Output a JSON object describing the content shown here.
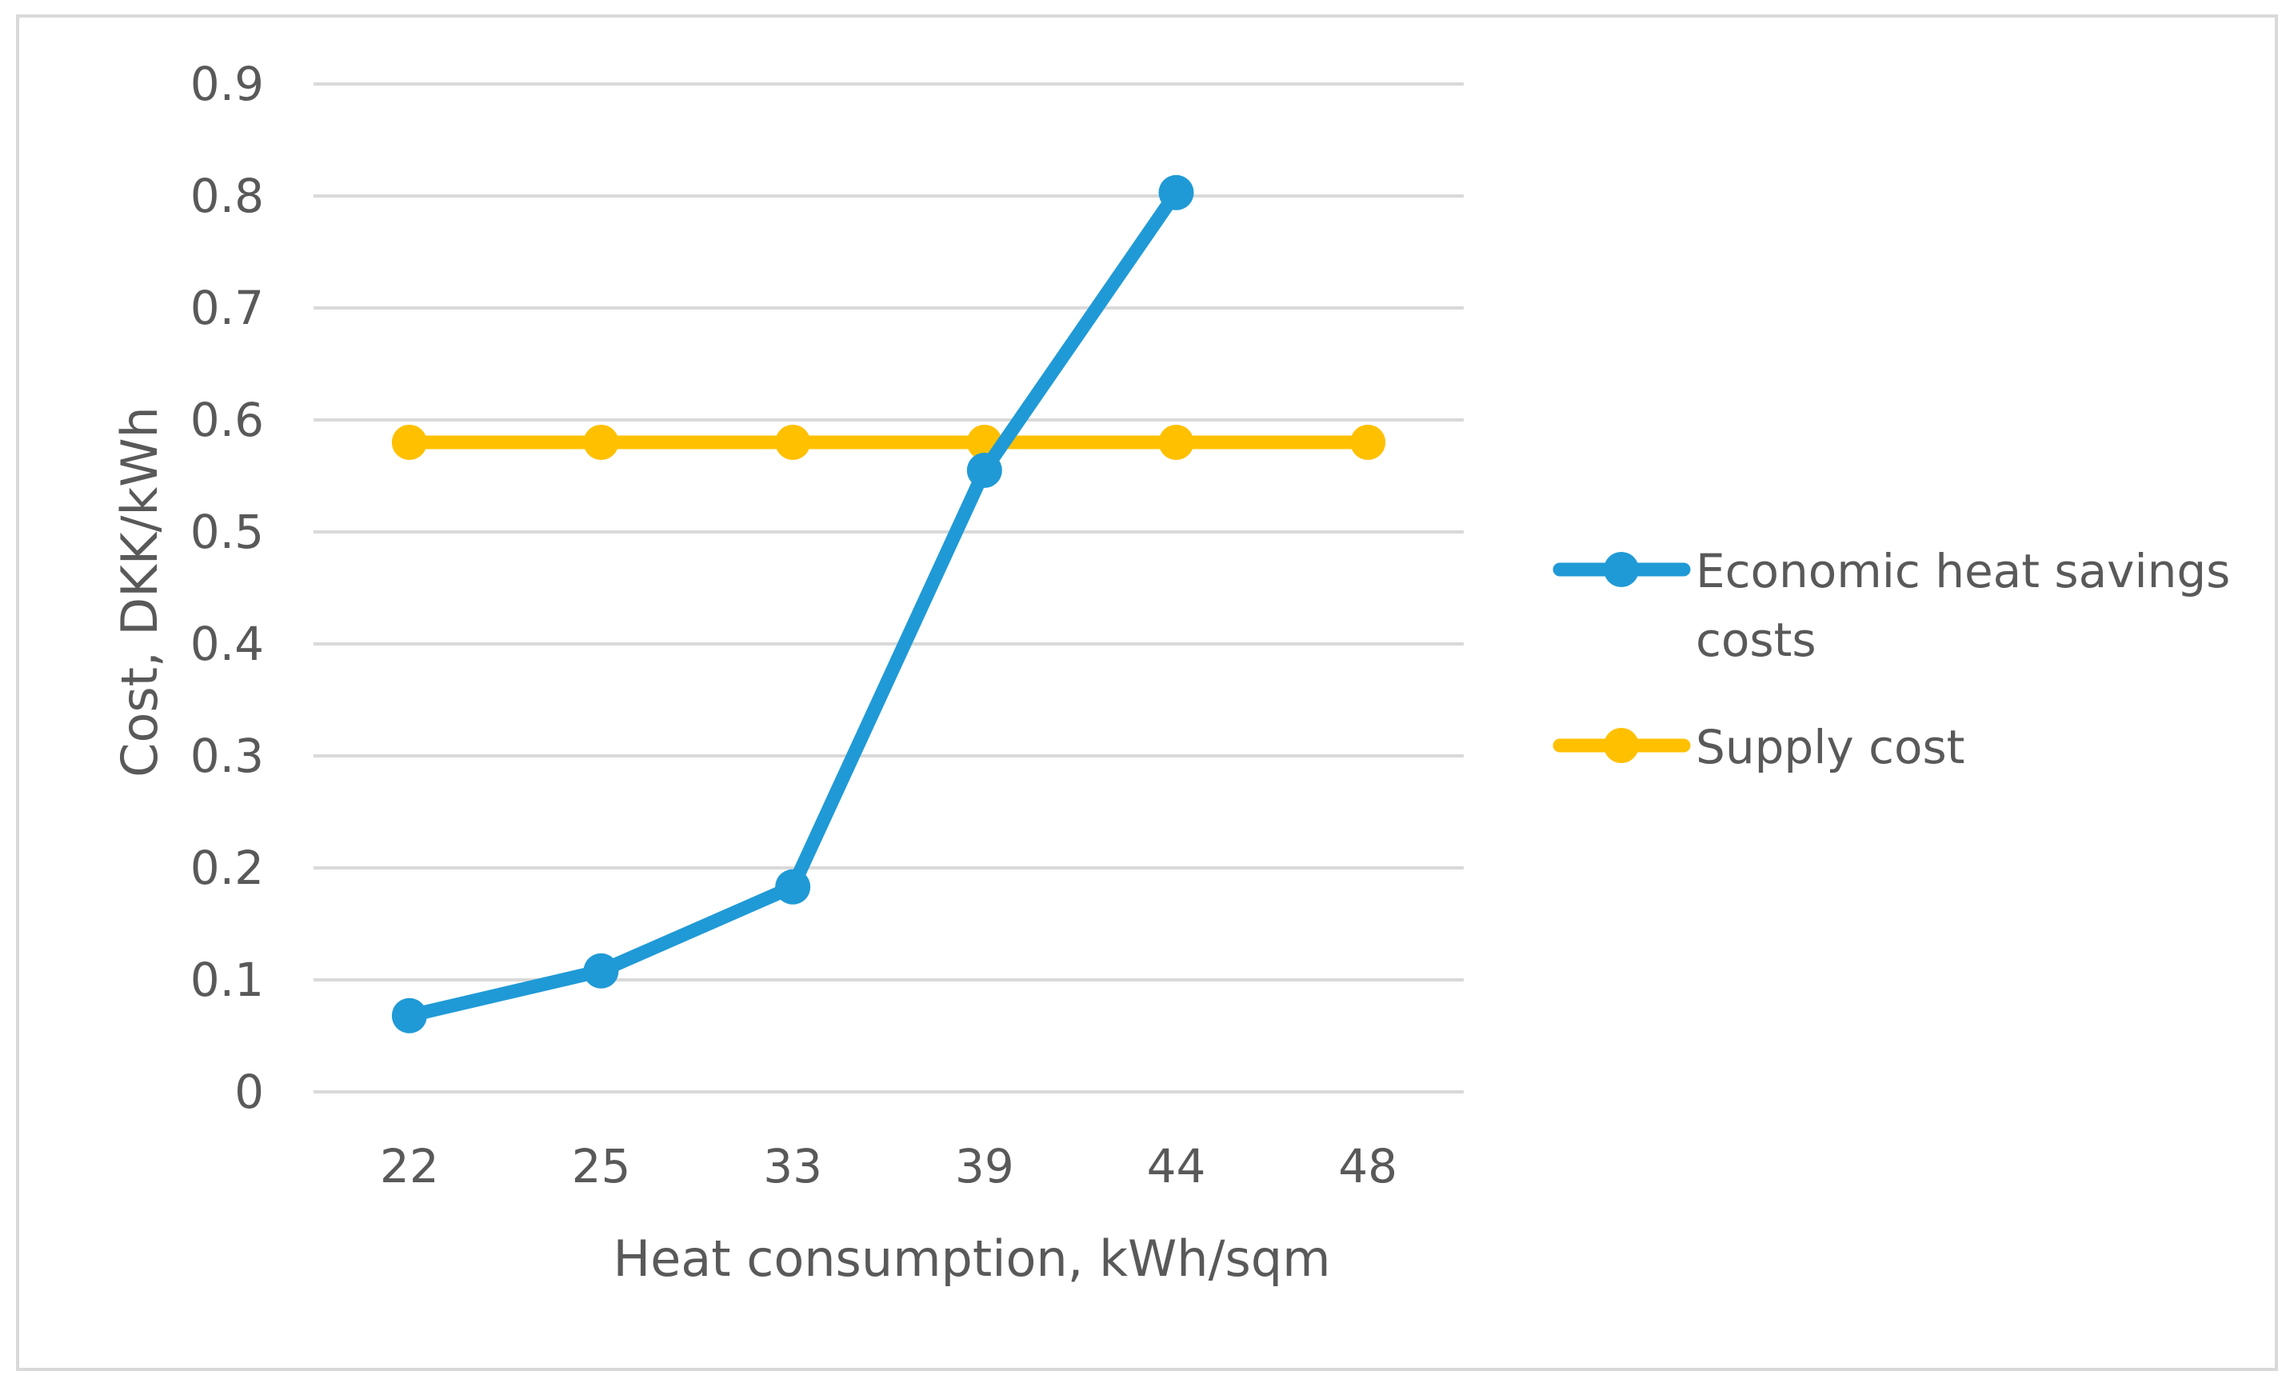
{
  "chart_data": {
    "type": "line",
    "title": "",
    "xlabel": "Heat consumption, kWh/sqm",
    "ylabel": "Cost, DKK/kWh",
    "categories": [
      "22",
      "25",
      "33",
      "39",
      "44",
      "48"
    ],
    "y_ticks": [
      "0",
      "0.1",
      "0.2",
      "0.3",
      "0.4",
      "0.5",
      "0.6",
      "0.7",
      "0.8",
      "0.9"
    ],
    "ylim": [
      0,
      0.9
    ],
    "grid": true,
    "legend_position": "right",
    "series": [
      {
        "name": "Economic heat savings costs",
        "legend_lines": [
          "Economic heat savings",
          "costs"
        ],
        "color": "#1f9ad6",
        "values": [
          0.068,
          0.108,
          0.183,
          0.555,
          0.803,
          null
        ]
      },
      {
        "name": "Supply cost",
        "legend_lines": [
          "Supply cost"
        ],
        "color": "#ffc000",
        "values": [
          0.58,
          0.58,
          0.58,
          0.58,
          0.58,
          0.58
        ]
      }
    ]
  }
}
